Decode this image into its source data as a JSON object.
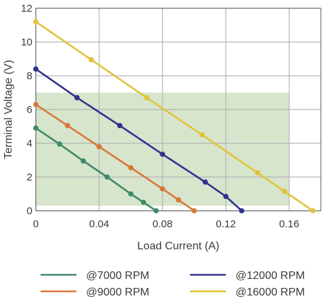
{
  "chart_data": {
    "type": "line",
    "title": "",
    "xlabel": "Load Current (A)",
    "ylabel": "Terminal Voltage (V)",
    "xlim": [
      0,
      0.18
    ],
    "ylim": [
      0,
      12
    ],
    "x_ticks": [
      "0",
      "0.04",
      "0.08",
      "0.12",
      "0.16"
    ],
    "y_ticks": [
      "0",
      "2",
      "4",
      "6",
      "8",
      "10",
      "12"
    ],
    "grid": true,
    "legend_position": "bottom",
    "shaded_region": {
      "x": [
        0,
        0.16
      ],
      "y": [
        0.3,
        7.0
      ],
      "color": "#d4e4c8"
    },
    "series": [
      {
        "name": "@7000 RPM",
        "color": "#3c8a6a",
        "points": [
          [
            0,
            4.9
          ],
          [
            0.015,
            3.95
          ],
          [
            0.03,
            2.95
          ],
          [
            0.045,
            2.0
          ],
          [
            0.06,
            1.0
          ],
          [
            0.068,
            0.5
          ],
          [
            0.076,
            0.0
          ]
        ]
      },
      {
        "name": "@9000 RPM",
        "color": "#d9773a",
        "points": [
          [
            0,
            6.3
          ],
          [
            0.02,
            5.05
          ],
          [
            0.04,
            3.8
          ],
          [
            0.06,
            2.55
          ],
          [
            0.08,
            1.3
          ],
          [
            0.09,
            0.65
          ],
          [
            0.1,
            0.0
          ]
        ]
      },
      {
        "name": "@12000 RPM",
        "color": "#2e3190",
        "points": [
          [
            0,
            8.4
          ],
          [
            0.026,
            6.7
          ],
          [
            0.053,
            5.05
          ],
          [
            0.08,
            3.35
          ],
          [
            0.107,
            1.7
          ],
          [
            0.12,
            0.85
          ],
          [
            0.13,
            0.0
          ]
        ]
      },
      {
        "name": "@16000 RPM",
        "color": "#e3c23a",
        "points": [
          [
            0,
            11.2
          ],
          [
            0.035,
            8.95
          ],
          [
            0.07,
            6.7
          ],
          [
            0.105,
            4.5
          ],
          [
            0.14,
            2.25
          ],
          [
            0.157,
            1.15
          ],
          [
            0.175,
            0.0
          ]
        ]
      }
    ]
  }
}
